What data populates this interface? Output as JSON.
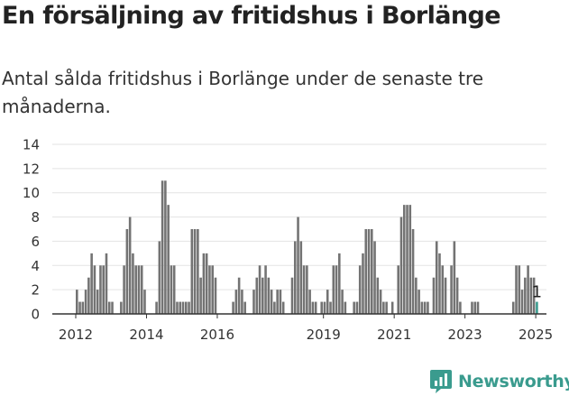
{
  "header": {
    "title": "En försäljning av fritidshus i Borlänge",
    "subtitle": "Antal sålda fritidshus i Borlänge under de senaste tre månaderna."
  },
  "brand": {
    "name": "Newsworthy",
    "accent": "#3a9b8e"
  },
  "chart_data": {
    "type": "bar",
    "title": "En försäljning av fritidshus i Borlänge",
    "subtitle": "Antal sålda fritidshus i Borlänge under de senaste tre månaderna.",
    "xlabel": "",
    "ylabel": "",
    "ylim": [
      0,
      14
    ],
    "yticks": [
      0,
      2,
      4,
      6,
      8,
      10,
      12,
      14
    ],
    "xticks": [
      "2012",
      "2014",
      "2016",
      "2019",
      "2021",
      "2023",
      "2025"
    ],
    "grid": true,
    "bar_color": "#737373",
    "highlight_color": "#3a9b8e",
    "annotation": "1",
    "x_unit": "month",
    "x_start": "2012-01",
    "values": [
      2,
      1,
      1,
      2,
      3,
      5,
      4,
      2,
      4,
      4,
      5,
      1,
      1,
      0,
      0,
      1,
      4,
      7,
      8,
      5,
      4,
      4,
      4,
      2,
      0,
      0,
      0,
      1,
      6,
      11,
      11,
      9,
      4,
      4,
      1,
      1,
      1,
      1,
      1,
      7,
      7,
      7,
      3,
      5,
      5,
      4,
      4,
      3,
      0,
      0,
      0,
      0,
      0,
      1,
      2,
      3,
      2,
      1,
      0,
      0,
      2,
      3,
      4,
      3,
      4,
      3,
      2,
      1,
      2,
      2,
      1,
      0,
      0,
      3,
      6,
      8,
      6,
      4,
      4,
      2,
      1,
      1,
      0,
      1,
      1,
      2,
      1,
      4,
      4,
      5,
      2,
      1,
      0,
      0,
      1,
      1,
      4,
      5,
      7,
      7,
      7,
      6,
      3,
      2,
      1,
      1,
      0,
      1,
      0,
      4,
      8,
      9,
      9,
      9,
      7,
      3,
      2,
      1,
      1,
      1,
      0,
      3,
      6,
      5,
      4,
      3,
      0,
      4,
      6,
      3,
      1,
      0,
      0,
      0,
      1,
      1,
      1,
      0,
      0,
      0,
      0,
      0,
      0,
      0,
      0,
      0,
      0,
      0,
      1,
      4,
      4,
      2,
      3,
      4,
      3,
      3,
      1
    ]
  }
}
